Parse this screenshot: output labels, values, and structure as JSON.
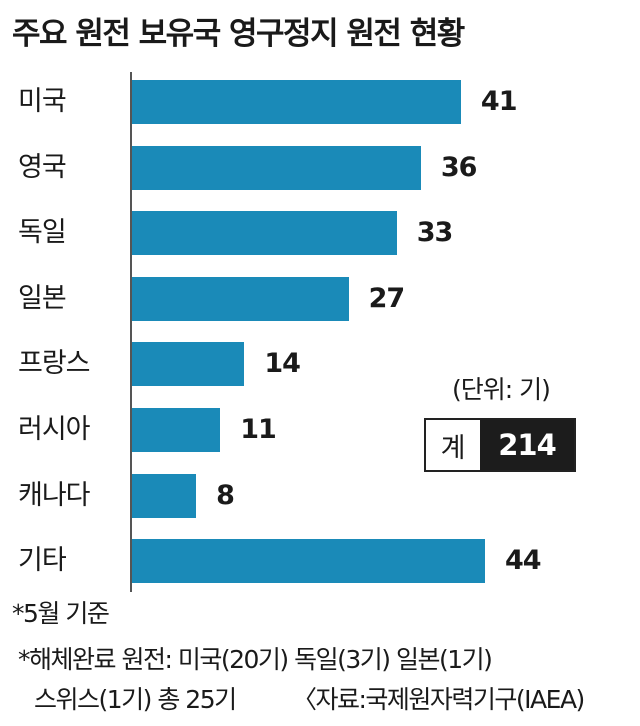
{
  "chart_data": {
    "type": "bar",
    "orientation": "horizontal",
    "title": "주요 원전 보유국 영구정지 원전 현황",
    "categories": [
      "미국",
      "영국",
      "독일",
      "일본",
      "프랑스",
      "러시아",
      "캐나다",
      "기타"
    ],
    "values": [
      41,
      36,
      33,
      27,
      14,
      11,
      8,
      44
    ],
    "xlim": [
      0,
      44
    ],
    "bar_color": "#1a8ab8",
    "grid": false,
    "unit_text": "(단위: 기)",
    "total_label": "계",
    "total_value": "214"
  },
  "notes": [
    "*5월 기준",
    "*해체완료 원전: 미국(20기) 독일(3기) 일본(1기)",
    "스위스(1기) 총 25기",
    "〈자료:국제원자력기구(IAEA)"
  ]
}
